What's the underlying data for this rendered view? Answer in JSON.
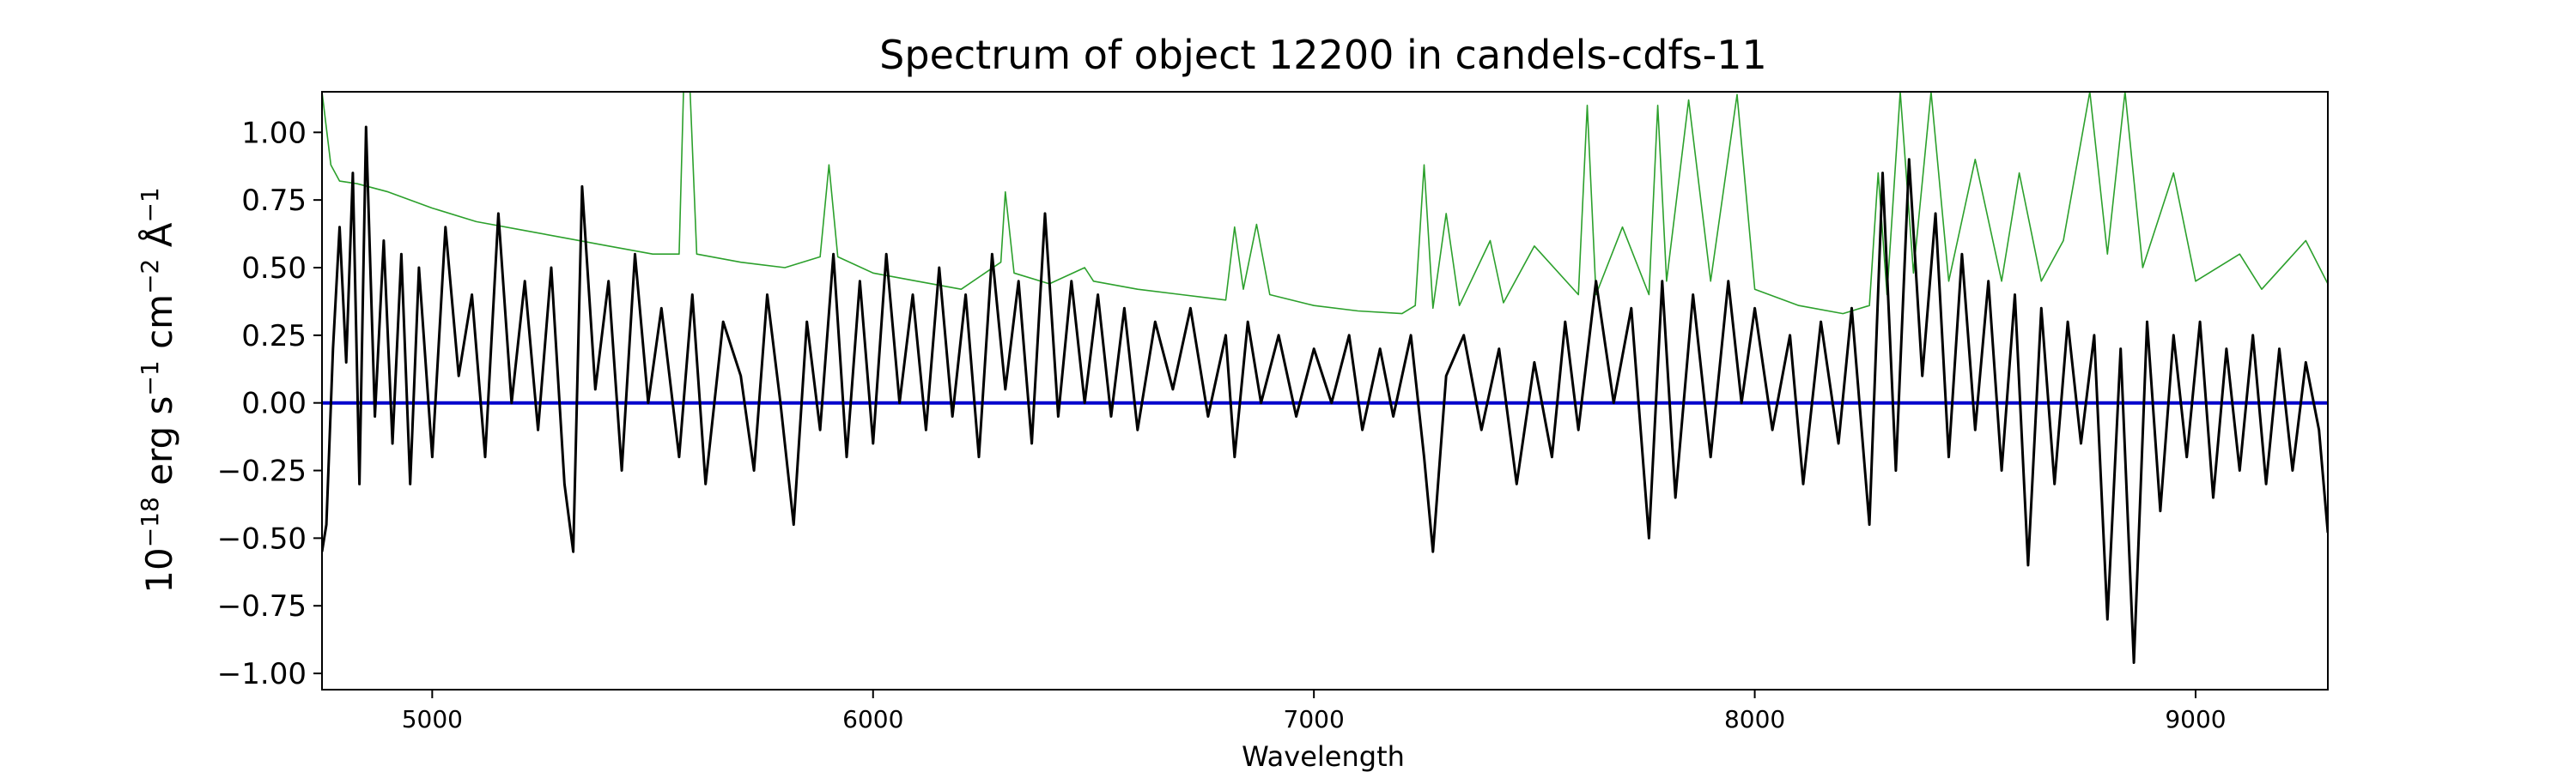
{
  "chart_data": {
    "type": "line",
    "title": "Spectrum of object 12200 in candels-cdfs-11",
    "xlabel": "Wavelength",
    "ylabel": {
      "base": "10",
      "exp1": "−18",
      "part1": " erg s",
      "exp2": "−1",
      "part2": " cm",
      "exp3": "−2",
      "part3": " Å",
      "exp4": "−1"
    },
    "xlim": [
      4750,
      9300
    ],
    "ylim": [
      -1.06,
      1.15
    ],
    "x_ticks": [
      {
        "value": 5000,
        "label": "5000"
      },
      {
        "value": 6000,
        "label": "6000"
      },
      {
        "value": 7000,
        "label": "7000"
      },
      {
        "value": 8000,
        "label": "8000"
      },
      {
        "value": 9000,
        "label": "9000"
      }
    ],
    "y_ticks": [
      {
        "value": 1.0,
        "label": "1.00"
      },
      {
        "value": 0.75,
        "label": "0.75"
      },
      {
        "value": 0.5,
        "label": "0.50"
      },
      {
        "value": 0.25,
        "label": "0.25"
      },
      {
        "value": 0.0,
        "label": "0.00"
      },
      {
        "value": -0.25,
        "label": "−0.25"
      },
      {
        "value": -0.5,
        "label": "−0.50"
      },
      {
        "value": -0.75,
        "label": "−0.75"
      },
      {
        "value": -1.0,
        "label": "−1.00"
      }
    ],
    "grid": false,
    "series": [
      {
        "role": "error",
        "color": "#2ca02c",
        "points": [
          [
            4750,
            1.15
          ],
          [
            4770,
            0.88
          ],
          [
            4790,
            0.82
          ],
          [
            4830,
            0.81
          ],
          [
            4900,
            0.78
          ],
          [
            5000,
            0.72
          ],
          [
            5100,
            0.67
          ],
          [
            5200,
            0.64
          ],
          [
            5300,
            0.61
          ],
          [
            5400,
            0.58
          ],
          [
            5500,
            0.55
          ],
          [
            5560,
            0.55
          ],
          [
            5570,
            1.15
          ],
          [
            5585,
            1.15
          ],
          [
            5600,
            0.55
          ],
          [
            5700,
            0.52
          ],
          [
            5800,
            0.5
          ],
          [
            5880,
            0.54
          ],
          [
            5900,
            0.88
          ],
          [
            5920,
            0.54
          ],
          [
            6000,
            0.48
          ],
          [
            6100,
            0.45
          ],
          [
            6200,
            0.42
          ],
          [
            6290,
            0.52
          ],
          [
            6300,
            0.78
          ],
          [
            6320,
            0.48
          ],
          [
            6400,
            0.44
          ],
          [
            6480,
            0.5
          ],
          [
            6500,
            0.45
          ],
          [
            6600,
            0.42
          ],
          [
            6700,
            0.4
          ],
          [
            6800,
            0.38
          ],
          [
            6820,
            0.65
          ],
          [
            6840,
            0.42
          ],
          [
            6870,
            0.66
          ],
          [
            6900,
            0.4
          ],
          [
            7000,
            0.36
          ],
          [
            7100,
            0.34
          ],
          [
            7200,
            0.33
          ],
          [
            7230,
            0.36
          ],
          [
            7250,
            0.88
          ],
          [
            7270,
            0.35
          ],
          [
            7300,
            0.7
          ],
          [
            7330,
            0.36
          ],
          [
            7400,
            0.6
          ],
          [
            7430,
            0.37
          ],
          [
            7500,
            0.58
          ],
          [
            7600,
            0.4
          ],
          [
            7620,
            1.1
          ],
          [
            7640,
            0.4
          ],
          [
            7700,
            0.65
          ],
          [
            7760,
            0.4
          ],
          [
            7780,
            1.1
          ],
          [
            7800,
            0.45
          ],
          [
            7850,
            1.12
          ],
          [
            7900,
            0.45
          ],
          [
            7960,
            1.14
          ],
          [
            8000,
            0.42
          ],
          [
            8100,
            0.36
          ],
          [
            8200,
            0.33
          ],
          [
            8260,
            0.36
          ],
          [
            8280,
            0.85
          ],
          [
            8300,
            0.4
          ],
          [
            8330,
            1.15
          ],
          [
            8360,
            0.48
          ],
          [
            8400,
            1.15
          ],
          [
            8440,
            0.45
          ],
          [
            8500,
            0.9
          ],
          [
            8560,
            0.45
          ],
          [
            8600,
            0.85
          ],
          [
            8650,
            0.45
          ],
          [
            8700,
            0.6
          ],
          [
            8760,
            1.15
          ],
          [
            8800,
            0.55
          ],
          [
            8840,
            1.15
          ],
          [
            8880,
            0.5
          ],
          [
            8950,
            0.85
          ],
          [
            9000,
            0.45
          ],
          [
            9100,
            0.55
          ],
          [
            9150,
            0.42
          ],
          [
            9250,
            0.6
          ],
          [
            9300,
            0.44
          ]
        ]
      },
      {
        "role": "model",
        "color": "#0000cc",
        "points": [
          [
            4750,
            0.0
          ],
          [
            9300,
            0.0
          ]
        ]
      },
      {
        "role": "flux",
        "color": "#000000",
        "points": [
          [
            4750,
            -0.55
          ],
          [
            4760,
            -0.45
          ],
          [
            4775,
            0.2
          ],
          [
            4790,
            0.65
          ],
          [
            4805,
            0.15
          ],
          [
            4820,
            0.85
          ],
          [
            4835,
            -0.3
          ],
          [
            4850,
            1.02
          ],
          [
            4870,
            -0.05
          ],
          [
            4890,
            0.6
          ],
          [
            4910,
            -0.15
          ],
          [
            4930,
            0.55
          ],
          [
            4950,
            -0.3
          ],
          [
            4970,
            0.5
          ],
          [
            5000,
            -0.2
          ],
          [
            5030,
            0.65
          ],
          [
            5060,
            0.1
          ],
          [
            5090,
            0.4
          ],
          [
            5120,
            -0.2
          ],
          [
            5150,
            0.7
          ],
          [
            5180,
            0.0
          ],
          [
            5210,
            0.45
          ],
          [
            5240,
            -0.1
          ],
          [
            5270,
            0.5
          ],
          [
            5300,
            -0.3
          ],
          [
            5320,
            -0.55
          ],
          [
            5340,
            0.8
          ],
          [
            5370,
            0.05
          ],
          [
            5400,
            0.45
          ],
          [
            5430,
            -0.25
          ],
          [
            5460,
            0.55
          ],
          [
            5490,
            0.0
          ],
          [
            5520,
            0.35
          ],
          [
            5560,
            -0.2
          ],
          [
            5590,
            0.4
          ],
          [
            5620,
            -0.3
          ],
          [
            5660,
            0.3
          ],
          [
            5700,
            0.1
          ],
          [
            5730,
            -0.25
          ],
          [
            5760,
            0.4
          ],
          [
            5790,
            0.0
          ],
          [
            5820,
            -0.45
          ],
          [
            5850,
            0.3
          ],
          [
            5880,
            -0.1
          ],
          [
            5910,
            0.55
          ],
          [
            5940,
            -0.2
          ],
          [
            5970,
            0.45
          ],
          [
            6000,
            -0.15
          ],
          [
            6030,
            0.55
          ],
          [
            6060,
            0.0
          ],
          [
            6090,
            0.4
          ],
          [
            6120,
            -0.1
          ],
          [
            6150,
            0.5
          ],
          [
            6180,
            -0.05
          ],
          [
            6210,
            0.4
          ],
          [
            6240,
            -0.2
          ],
          [
            6270,
            0.55
          ],
          [
            6300,
            0.05
          ],
          [
            6330,
            0.45
          ],
          [
            6360,
            -0.15
          ],
          [
            6390,
            0.7
          ],
          [
            6420,
            -0.05
          ],
          [
            6450,
            0.45
          ],
          [
            6480,
            0.0
          ],
          [
            6510,
            0.4
          ],
          [
            6540,
            -0.05
          ],
          [
            6570,
            0.35
          ],
          [
            6600,
            -0.1
          ],
          [
            6640,
            0.3
          ],
          [
            6680,
            0.05
          ],
          [
            6720,
            0.35
          ],
          [
            6760,
            -0.05
          ],
          [
            6800,
            0.25
          ],
          [
            6820,
            -0.2
          ],
          [
            6850,
            0.3
          ],
          [
            6880,
            0.0
          ],
          [
            6920,
            0.25
          ],
          [
            6960,
            -0.05
          ],
          [
            7000,
            0.2
          ],
          [
            7040,
            0.0
          ],
          [
            7080,
            0.25
          ],
          [
            7110,
            -0.1
          ],
          [
            7150,
            0.2
          ],
          [
            7180,
            -0.05
          ],
          [
            7220,
            0.25
          ],
          [
            7250,
            -0.2
          ],
          [
            7270,
            -0.55
          ],
          [
            7300,
            0.1
          ],
          [
            7340,
            0.25
          ],
          [
            7380,
            -0.1
          ],
          [
            7420,
            0.2
          ],
          [
            7460,
            -0.3
          ],
          [
            7500,
            0.15
          ],
          [
            7540,
            -0.2
          ],
          [
            7570,
            0.3
          ],
          [
            7600,
            -0.1
          ],
          [
            7640,
            0.45
          ],
          [
            7680,
            0.0
          ],
          [
            7720,
            0.35
          ],
          [
            7760,
            -0.5
          ],
          [
            7790,
            0.45
          ],
          [
            7820,
            -0.35
          ],
          [
            7860,
            0.4
          ],
          [
            7900,
            -0.2
          ],
          [
            7940,
            0.45
          ],
          [
            7970,
            0.0
          ],
          [
            8000,
            0.35
          ],
          [
            8040,
            -0.1
          ],
          [
            8080,
            0.25
          ],
          [
            8110,
            -0.3
          ],
          [
            8150,
            0.3
          ],
          [
            8190,
            -0.15
          ],
          [
            8220,
            0.35
          ],
          [
            8260,
            -0.45
          ],
          [
            8290,
            0.85
          ],
          [
            8320,
            -0.25
          ],
          [
            8350,
            0.9
          ],
          [
            8380,
            0.1
          ],
          [
            8410,
            0.7
          ],
          [
            8440,
            -0.2
          ],
          [
            8470,
            0.55
          ],
          [
            8500,
            -0.1
          ],
          [
            8530,
            0.45
          ],
          [
            8560,
            -0.25
          ],
          [
            8590,
            0.4
          ],
          [
            8620,
            -0.6
          ],
          [
            8650,
            0.35
          ],
          [
            8680,
            -0.3
          ],
          [
            8710,
            0.3
          ],
          [
            8740,
            -0.15
          ],
          [
            8770,
            0.25
          ],
          [
            8800,
            -0.8
          ],
          [
            8830,
            0.2
          ],
          [
            8860,
            -0.96
          ],
          [
            8890,
            0.3
          ],
          [
            8920,
            -0.4
          ],
          [
            8950,
            0.25
          ],
          [
            8980,
            -0.2
          ],
          [
            9010,
            0.3
          ],
          [
            9040,
            -0.35
          ],
          [
            9070,
            0.2
          ],
          [
            9100,
            -0.25
          ],
          [
            9130,
            0.25
          ],
          [
            9160,
            -0.3
          ],
          [
            9190,
            0.2
          ],
          [
            9220,
            -0.25
          ],
          [
            9250,
            0.15
          ],
          [
            9280,
            -0.1
          ],
          [
            9300,
            -0.48
          ]
        ]
      }
    ]
  }
}
